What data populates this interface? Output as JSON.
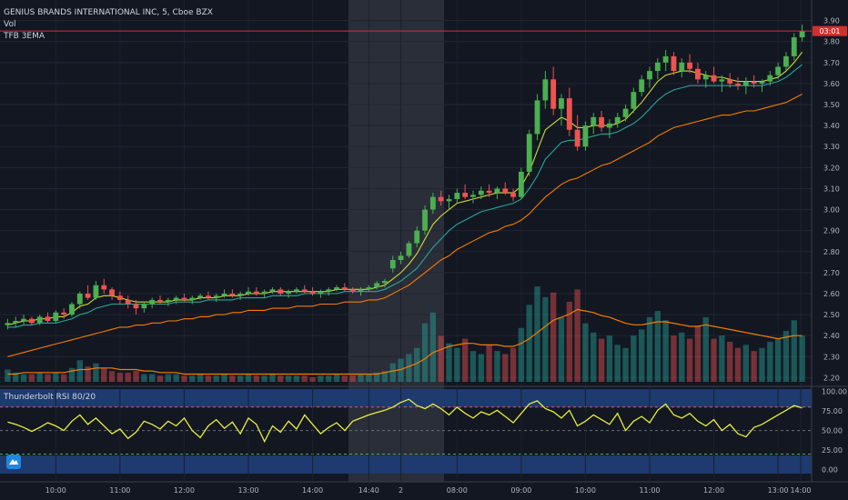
{
  "header": {
    "symbol_line": "GENIUS BRANDS INTERNATIONAL INC, 5, Cboe BZX",
    "vol_label": "Vol",
    "ema_label": "TFB 3EMA"
  },
  "rsi_pane": {
    "label": "Thunderbolt RSI 80/20"
  },
  "colors": {
    "background": "#131722",
    "up": "#26a69a",
    "up_candle": "#4caf50",
    "down": "#ef5350",
    "ema_fast": "#cddc39",
    "ema_mid": "#26a69a",
    "ema_slow": "#f57c00",
    "rsi_line": "#e6ee3c",
    "rsi_band": "#1e3a6e",
    "price_tag": "#d32f2f"
  },
  "chart_data": [
    {
      "type": "candlestick",
      "title": "GENIUS BRANDS INTERNATIONAL INC, 5, Cboe BZX",
      "x_ticks": [
        "10:00",
        "11:00",
        "12:00",
        "13:00",
        "14:00",
        "14:40",
        "2",
        "08:00",
        "09:00",
        "10:00",
        "11:00",
        "12:00",
        "13:00",
        "14:00"
      ],
      "y_ticks": [
        "2.20",
        "2.30",
        "2.40",
        "2.50",
        "2.60",
        "2.70",
        "2.80",
        "2.90",
        "3.00",
        "3.10",
        "3.20",
        "3.30",
        "3.40",
        "3.50",
        "3.60",
        "3.70",
        "3.80",
        "3.90"
      ],
      "ylim": [
        2.18,
        3.92
      ],
      "last_price_label": "03:01",
      "last_price": 3.85,
      "ohlc": [
        [
          2.45,
          2.48,
          2.43,
          2.46
        ],
        [
          2.46,
          2.49,
          2.44,
          2.47
        ],
        [
          2.47,
          2.5,
          2.45,
          2.48
        ],
        [
          2.48,
          2.49,
          2.45,
          2.46
        ],
        [
          2.46,
          2.5,
          2.45,
          2.49
        ],
        [
          2.49,
          2.51,
          2.46,
          2.47
        ],
        [
          2.47,
          2.52,
          2.46,
          2.51
        ],
        [
          2.51,
          2.53,
          2.48,
          2.5
        ],
        [
          2.5,
          2.56,
          2.49,
          2.55
        ],
        [
          2.55,
          2.61,
          2.53,
          2.6
        ],
        [
          2.6,
          2.64,
          2.57,
          2.58
        ],
        [
          2.58,
          2.66,
          2.57,
          2.64
        ],
        [
          2.64,
          2.67,
          2.6,
          2.62
        ],
        [
          2.62,
          2.63,
          2.57,
          2.59
        ],
        [
          2.59,
          2.61,
          2.55,
          2.57
        ],
        [
          2.57,
          2.59,
          2.53,
          2.55
        ],
        [
          2.55,
          2.57,
          2.5,
          2.53
        ],
        [
          2.53,
          2.56,
          2.51,
          2.55
        ],
        [
          2.55,
          2.58,
          2.53,
          2.57
        ],
        [
          2.57,
          2.59,
          2.55,
          2.56
        ],
        [
          2.56,
          2.58,
          2.54,
          2.57
        ],
        [
          2.57,
          2.59,
          2.55,
          2.58
        ],
        [
          2.58,
          2.6,
          2.56,
          2.57
        ],
        [
          2.57,
          2.59,
          2.55,
          2.58
        ],
        [
          2.58,
          2.6,
          2.57,
          2.59
        ],
        [
          2.59,
          2.61,
          2.57,
          2.58
        ],
        [
          2.58,
          2.6,
          2.56,
          2.59
        ],
        [
          2.59,
          2.62,
          2.58,
          2.6
        ],
        [
          2.6,
          2.62,
          2.58,
          2.59
        ],
        [
          2.59,
          2.61,
          2.57,
          2.6
        ],
        [
          2.6,
          2.63,
          2.59,
          2.61
        ],
        [
          2.61,
          2.63,
          2.59,
          2.6
        ],
        [
          2.6,
          2.62,
          2.58,
          2.61
        ],
        [
          2.61,
          2.63,
          2.6,
          2.62
        ],
        [
          2.62,
          2.63,
          2.59,
          2.6
        ],
        [
          2.6,
          2.62,
          2.58,
          2.61
        ],
        [
          2.61,
          2.63,
          2.6,
          2.62
        ],
        [
          2.62,
          2.64,
          2.6,
          2.61
        ],
        [
          2.61,
          2.63,
          2.59,
          2.6
        ],
        [
          2.6,
          2.62,
          2.58,
          2.61
        ],
        [
          2.61,
          2.63,
          2.59,
          2.62
        ],
        [
          2.62,
          2.64,
          2.61,
          2.63
        ],
        [
          2.63,
          2.65,
          2.61,
          2.62
        ],
        [
          2.62,
          2.63,
          2.6,
          2.61
        ],
        [
          2.61,
          2.63,
          2.59,
          2.62
        ],
        [
          2.62,
          2.64,
          2.61,
          2.63
        ],
        [
          2.63,
          2.66,
          2.62,
          2.65
        ],
        [
          2.65,
          2.67,
          2.63,
          2.66
        ],
        [
          2.72,
          2.78,
          2.7,
          2.76
        ],
        [
          2.76,
          2.8,
          2.74,
          2.78
        ],
        [
          2.78,
          2.85,
          2.77,
          2.84
        ],
        [
          2.84,
          2.92,
          2.82,
          2.9
        ],
        [
          2.9,
          3.02,
          2.88,
          3.0
        ],
        [
          3.0,
          3.08,
          2.98,
          3.06
        ],
        [
          3.06,
          3.09,
          3.02,
          3.04
        ],
        [
          3.04,
          3.07,
          3.0,
          3.05
        ],
        [
          3.05,
          3.1,
          3.03,
          3.08
        ],
        [
          3.08,
          3.12,
          3.05,
          3.06
        ],
        [
          3.06,
          3.09,
          3.03,
          3.07
        ],
        [
          3.07,
          3.11,
          3.05,
          3.09
        ],
        [
          3.09,
          3.12,
          3.06,
          3.08
        ],
        [
          3.08,
          3.11,
          3.05,
          3.1
        ],
        [
          3.1,
          3.13,
          3.07,
          3.08
        ],
        [
          3.08,
          3.1,
          3.04,
          3.06
        ],
        [
          3.06,
          3.2,
          3.05,
          3.18
        ],
        [
          3.18,
          3.38,
          3.16,
          3.36
        ],
        [
          3.36,
          3.55,
          3.33,
          3.52
        ],
        [
          3.52,
          3.66,
          3.48,
          3.62
        ],
        [
          3.62,
          3.68,
          3.45,
          3.48
        ],
        [
          3.48,
          3.55,
          3.4,
          3.53
        ],
        [
          3.53,
          3.58,
          3.35,
          3.38
        ],
        [
          3.38,
          3.45,
          3.28,
          3.3
        ],
        [
          3.3,
          3.42,
          3.28,
          3.4
        ],
        [
          3.4,
          3.46,
          3.36,
          3.44
        ],
        [
          3.44,
          3.47,
          3.37,
          3.39
        ],
        [
          3.39,
          3.43,
          3.34,
          3.41
        ],
        [
          3.41,
          3.46,
          3.39,
          3.44
        ],
        [
          3.44,
          3.5,
          3.42,
          3.48
        ],
        [
          3.48,
          3.58,
          3.46,
          3.56
        ],
        [
          3.56,
          3.64,
          3.54,
          3.62
        ],
        [
          3.62,
          3.68,
          3.58,
          3.66
        ],
        [
          3.66,
          3.72,
          3.62,
          3.7
        ],
        [
          3.7,
          3.76,
          3.66,
          3.73
        ],
        [
          3.73,
          3.75,
          3.64,
          3.66
        ],
        [
          3.66,
          3.72,
          3.63,
          3.7
        ],
        [
          3.7,
          3.74,
          3.65,
          3.67
        ],
        [
          3.67,
          3.7,
          3.6,
          3.62
        ],
        [
          3.62,
          3.66,
          3.58,
          3.64
        ],
        [
          3.64,
          3.68,
          3.6,
          3.61
        ],
        [
          3.61,
          3.64,
          3.56,
          3.62
        ],
        [
          3.62,
          3.65,
          3.58,
          3.6
        ],
        [
          3.6,
          3.63,
          3.57,
          3.59
        ],
        [
          3.59,
          3.63,
          3.55,
          3.61
        ],
        [
          3.61,
          3.64,
          3.58,
          3.6
        ],
        [
          3.6,
          3.62,
          3.56,
          3.61
        ],
        [
          3.61,
          3.66,
          3.59,
          3.64
        ],
        [
          3.64,
          3.7,
          3.62,
          3.68
        ],
        [
          3.68,
          3.75,
          3.66,
          3.73
        ],
        [
          3.73,
          3.84,
          3.71,
          3.82
        ],
        [
          3.82,
          3.88,
          3.8,
          3.85
        ]
      ],
      "ema_fast": [
        2.45,
        2.46,
        2.47,
        2.47,
        2.48,
        2.48,
        2.49,
        2.49,
        2.51,
        2.54,
        2.55,
        2.58,
        2.59,
        2.59,
        2.58,
        2.57,
        2.56,
        2.56,
        2.56,
        2.56,
        2.56,
        2.57,
        2.57,
        2.57,
        2.58,
        2.58,
        2.58,
        2.59,
        2.59,
        2.59,
        2.6,
        2.6,
        2.6,
        2.61,
        2.61,
        2.61,
        2.61,
        2.61,
        2.61,
        2.61,
        2.61,
        2.62,
        2.62,
        2.62,
        2.62,
        2.62,
        2.63,
        2.64,
        2.67,
        2.7,
        2.74,
        2.79,
        2.86,
        2.93,
        2.97,
        3.0,
        3.03,
        3.04,
        3.05,
        3.06,
        3.07,
        3.08,
        3.08,
        3.08,
        3.11,
        3.18,
        3.28,
        3.38,
        3.41,
        3.44,
        3.42,
        3.39,
        3.39,
        3.4,
        3.4,
        3.4,
        3.41,
        3.43,
        3.47,
        3.51,
        3.56,
        3.61,
        3.64,
        3.65,
        3.66,
        3.66,
        3.65,
        3.64,
        3.63,
        3.63,
        3.62,
        3.61,
        3.61,
        3.61,
        3.61,
        3.62,
        3.63,
        3.66,
        3.7,
        3.75
      ],
      "ema_mid": [
        2.44,
        2.44,
        2.45,
        2.45,
        2.46,
        2.46,
        2.46,
        2.47,
        2.48,
        2.5,
        2.51,
        2.53,
        2.54,
        2.55,
        2.55,
        2.55,
        2.55,
        2.55,
        2.55,
        2.55,
        2.55,
        2.56,
        2.56,
        2.56,
        2.56,
        2.57,
        2.57,
        2.57,
        2.57,
        2.58,
        2.58,
        2.58,
        2.58,
        2.59,
        2.59,
        2.59,
        2.59,
        2.6,
        2.6,
        2.6,
        2.6,
        2.6,
        2.61,
        2.61,
        2.61,
        2.61,
        2.61,
        2.62,
        2.64,
        2.66,
        2.69,
        2.72,
        2.77,
        2.82,
        2.86,
        2.9,
        2.93,
        2.95,
        2.97,
        2.99,
        3.0,
        3.01,
        3.02,
        3.03,
        3.05,
        3.1,
        3.16,
        3.24,
        3.28,
        3.32,
        3.33,
        3.33,
        3.34,
        3.35,
        3.36,
        3.36,
        3.37,
        3.39,
        3.41,
        3.44,
        3.48,
        3.52,
        3.55,
        3.57,
        3.58,
        3.59,
        3.59,
        3.59,
        3.59,
        3.59,
        3.59,
        3.59,
        3.59,
        3.59,
        3.59,
        3.6,
        3.61,
        3.63,
        3.66,
        3.69
      ],
      "ema_slow": [
        2.3,
        2.31,
        2.32,
        2.33,
        2.34,
        2.35,
        2.36,
        2.37,
        2.38,
        2.39,
        2.4,
        2.41,
        2.42,
        2.43,
        2.44,
        2.44,
        2.45,
        2.45,
        2.46,
        2.46,
        2.47,
        2.47,
        2.48,
        2.48,
        2.49,
        2.49,
        2.5,
        2.5,
        2.51,
        2.51,
        2.52,
        2.52,
        2.52,
        2.53,
        2.53,
        2.53,
        2.54,
        2.54,
        2.54,
        2.55,
        2.55,
        2.55,
        2.56,
        2.56,
        2.56,
        2.57,
        2.57,
        2.58,
        2.6,
        2.62,
        2.64,
        2.67,
        2.7,
        2.73,
        2.76,
        2.78,
        2.81,
        2.83,
        2.85,
        2.87,
        2.89,
        2.9,
        2.92,
        2.93,
        2.95,
        2.98,
        3.02,
        3.06,
        3.09,
        3.12,
        3.14,
        3.15,
        3.17,
        3.19,
        3.21,
        3.22,
        3.24,
        3.26,
        3.28,
        3.3,
        3.32,
        3.35,
        3.37,
        3.39,
        3.4,
        3.41,
        3.42,
        3.43,
        3.44,
        3.45,
        3.45,
        3.46,
        3.47,
        3.47,
        3.48,
        3.49,
        3.5,
        3.51,
        3.53,
        3.55
      ],
      "volume": [
        8,
        6,
        5,
        5,
        6,
        5,
        6,
        5,
        9,
        14,
        10,
        12,
        9,
        7,
        6,
        6,
        7,
        5,
        5,
        4,
        5,
        5,
        4,
        4,
        5,
        4,
        4,
        5,
        4,
        4,
        5,
        4,
        4,
        5,
        4,
        4,
        4,
        4,
        3,
        4,
        4,
        5,
        4,
        4,
        5,
        5,
        6,
        7,
        12,
        15,
        18,
        22,
        38,
        45,
        30,
        25,
        22,
        28,
        20,
        18,
        24,
        20,
        18,
        22,
        35,
        50,
        62,
        55,
        58,
        42,
        52,
        60,
        38,
        32,
        28,
        30,
        24,
        22,
        30,
        34,
        42,
        46,
        40,
        30,
        32,
        28,
        36,
        42,
        28,
        30,
        26,
        22,
        24,
        20,
        22,
        26,
        28,
        33,
        40,
        30
      ],
      "volume_ma": [
        5,
        5,
        6,
        6,
        6,
        6,
        6,
        6,
        7,
        8,
        8,
        9,
        9,
        9,
        8,
        8,
        8,
        7,
        7,
        6,
        6,
        6,
        5,
        5,
        5,
        5,
        5,
        5,
        5,
        5,
        5,
        5,
        5,
        5,
        5,
        5,
        5,
        5,
        5,
        5,
        5,
        5,
        5,
        5,
        5,
        5,
        5,
        6,
        7,
        8,
        10,
        12,
        15,
        19,
        21,
        23,
        24,
        25,
        25,
        24,
        24,
        24,
        23,
        23,
        25,
        28,
        32,
        36,
        40,
        42,
        44,
        47,
        46,
        45,
        43,
        42,
        40,
        38,
        37,
        37,
        38,
        39,
        39,
        38,
        37,
        36,
        36,
        37,
        36,
        35,
        34,
        33,
        32,
        31,
        30,
        29,
        28,
        29,
        30,
        30
      ]
    },
    {
      "type": "line",
      "title": "Thunderbolt RSI 80/20",
      "y_ticks": [
        "0.00",
        "25.00",
        "50.00",
        "75.00",
        "100.00"
      ],
      "ylim": [
        -5,
        103
      ],
      "values": [
        61,
        58,
        54,
        49,
        54,
        60,
        56,
        50,
        62,
        70,
        58,
        66,
        56,
        46,
        52,
        40,
        48,
        62,
        58,
        52,
        62,
        56,
        66,
        50,
        41,
        56,
        64,
        53,
        61,
        46,
        66,
        58,
        36,
        56,
        48,
        62,
        52,
        70,
        58,
        46,
        54,
        60,
        50,
        62,
        66,
        70,
        73,
        76,
        80,
        86,
        90,
        82,
        78,
        84,
        78,
        70,
        80,
        72,
        66,
        74,
        70,
        76,
        68,
        60,
        72,
        84,
        88,
        78,
        74,
        66,
        76,
        56,
        62,
        70,
        64,
        58,
        72,
        50,
        62,
        68,
        60,
        76,
        84,
        70,
        66,
        72,
        62,
        56,
        64,
        50,
        58,
        46,
        42,
        54,
        58,
        64,
        70,
        76,
        82,
        79
      ]
    }
  ]
}
